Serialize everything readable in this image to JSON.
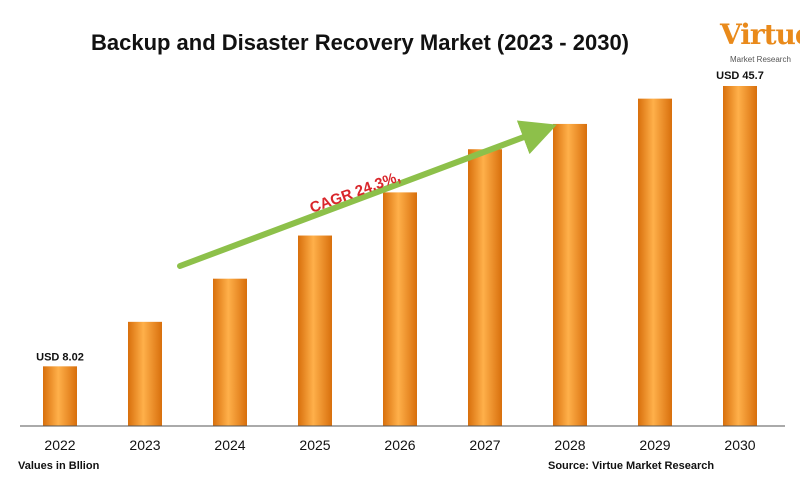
{
  "header": {
    "title": "Backup and Disaster Recovery Market (2023 - 2030)"
  },
  "logo": {
    "name": "Virtue",
    "tagline": "Market Research"
  },
  "chart_data": {
    "type": "bar",
    "title": "Backup and Disaster Recovery Market (2023 - 2030)",
    "categories": [
      "2022",
      "2023",
      "2024",
      "2025",
      "2026",
      "2027",
      "2028",
      "2029",
      "2030"
    ],
    "values": [
      8.02,
      14.0,
      19.8,
      25.6,
      31.4,
      37.2,
      40.6,
      44.0,
      45.7
    ],
    "data_labels": {
      "first": "USD 8.02",
      "last": "USD 45.7"
    },
    "annotation": "CAGR 24.3%,",
    "xlabel": "Values in Bllion",
    "ylabel": "",
    "ylim": [
      0,
      50
    ],
    "grid": false,
    "bar_color": "#f5921e",
    "arrow_color": "#8dc04a",
    "annotation_color": "#d9262b"
  },
  "footer": {
    "unit_note": "Values in Bllion",
    "source": "Source: Virtue Market Research"
  }
}
